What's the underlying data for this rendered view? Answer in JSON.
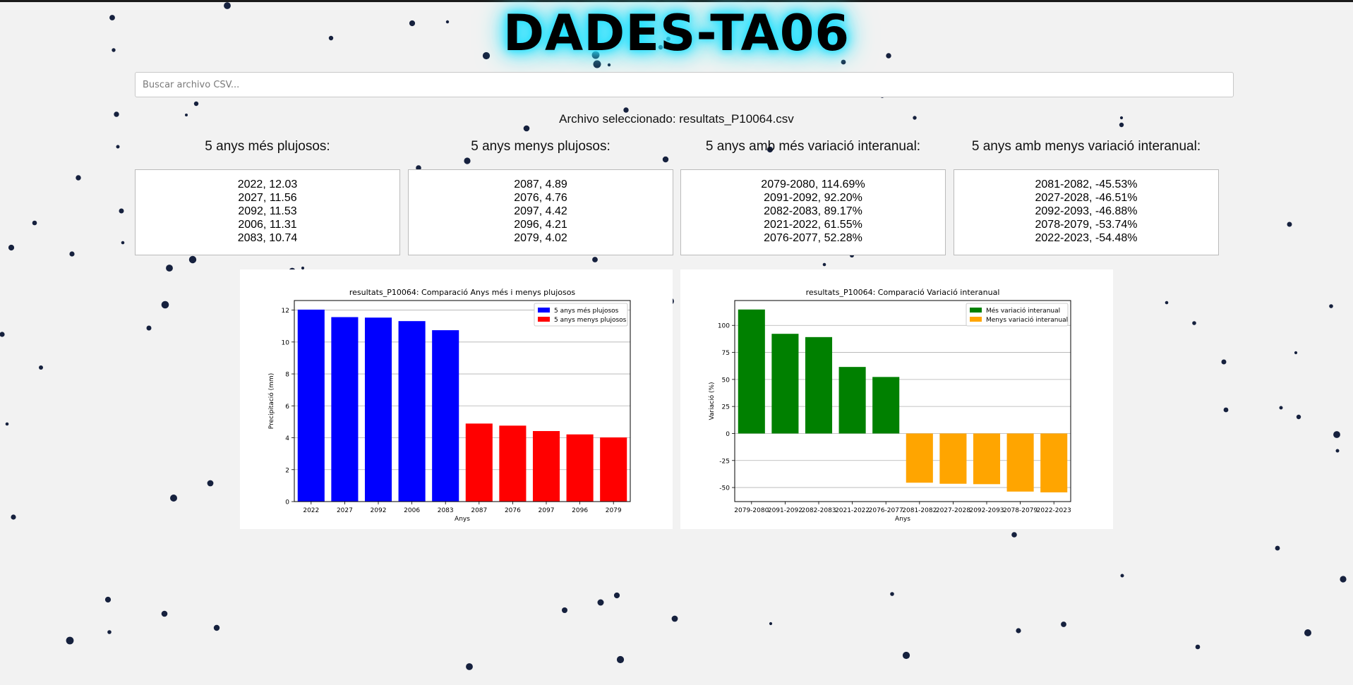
{
  "app": {
    "title": "DADES-TA06",
    "search_placeholder": "Buscar archivo CSV...",
    "selected_file_text": "Archivo seleccionado: resultats_P10064.csv"
  },
  "summaries": [
    {
      "title": "5 anys més plujosos:",
      "items": [
        "2022, 12.03",
        "2027, 11.56",
        "2092, 11.53",
        "2006, 11.31",
        "2083, 10.74"
      ]
    },
    {
      "title": "5 anys menys plujosos:",
      "items": [
        "2087, 4.89",
        "2076, 4.76",
        "2097, 4.42",
        "2096, 4.21",
        "2079, 4.02"
      ]
    },
    {
      "title": "5 anys amb més variació interanual:",
      "items": [
        "2079-2080, 114.69%",
        "2091-2092, 92.20%",
        "2082-2083, 89.17%",
        "2021-2022, 61.55%",
        "2076-2077, 52.28%"
      ]
    },
    {
      "title": "5 anys amb menys variació interanual:",
      "items": [
        "2081-2082, -45.53%",
        "2027-2028, -46.51%",
        "2092-2093, -46.88%",
        "2078-2079, -53.74%",
        "2022-2023, -54.48%"
      ]
    }
  ],
  "chart_data": [
    {
      "type": "bar",
      "title": "resultats_P10064: Comparació Anys més i menys plujosos",
      "xlabel": "Anys",
      "ylabel": "Precipitació (mm)",
      "ylim": [
        0,
        12.6
      ],
      "yticks": [
        0,
        2,
        4,
        6,
        8,
        10,
        12
      ],
      "grid": true,
      "legend_position": "top-right",
      "categories": [
        "2022",
        "2027",
        "2092",
        "2006",
        "2083",
        "2087",
        "2076",
        "2097",
        "2096",
        "2079"
      ],
      "series": [
        {
          "name": "5 anys més plujosos",
          "color": "#0000ff",
          "values": [
            12.03,
            11.56,
            11.53,
            11.31,
            10.74,
            null,
            null,
            null,
            null,
            null
          ]
        },
        {
          "name": "5 anys menys plujosos",
          "color": "#ff0000",
          "values": [
            null,
            null,
            null,
            null,
            null,
            4.89,
            4.76,
            4.42,
            4.21,
            4.02
          ]
        }
      ]
    },
    {
      "type": "bar",
      "title": "resultats_P10064: Comparació Variació interanual",
      "xlabel": "Anys",
      "ylabel": "Variació (%)",
      "ylim": [
        -63,
        123
      ],
      "yticks": [
        -50,
        -25,
        0,
        25,
        50,
        75,
        100
      ],
      "grid": true,
      "legend_position": "top-right",
      "categories": [
        "2079-2080",
        "2091-2092",
        "2082-2083",
        "2021-2022",
        "2076-2077",
        "2081-2082",
        "2027-2028",
        "2092-2093",
        "2078-2079",
        "2022-2023"
      ],
      "series": [
        {
          "name": "Més variació interanual",
          "color": "#008000",
          "values": [
            114.69,
            92.2,
            89.17,
            61.55,
            52.28,
            null,
            null,
            null,
            null,
            null
          ]
        },
        {
          "name": "Menys variació interanual",
          "color": "#ffa500",
          "values": [
            null,
            null,
            null,
            null,
            null,
            -45.53,
            -46.51,
            -46.88,
            -53.74,
            -54.48
          ]
        }
      ]
    }
  ],
  "colors": {
    "title_glow": "#22e0ff",
    "background": "#f2f2f2",
    "dots": "#16213e"
  }
}
